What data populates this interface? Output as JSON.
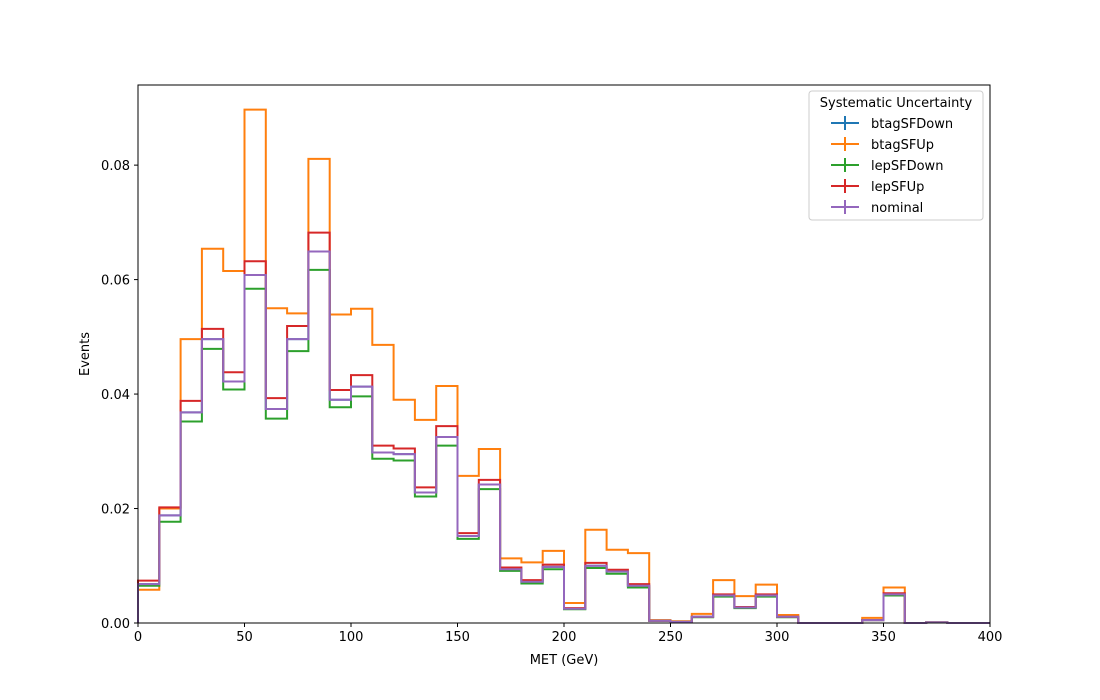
{
  "chart_data": {
    "type": "line",
    "drawstyle": "step-histogram",
    "xlabel": "MET (GeV)",
    "ylabel": "Events",
    "xlim": [
      0,
      400
    ],
    "ylim": [
      0,
      0.094
    ],
    "xticks": [
      0,
      50,
      100,
      150,
      200,
      250,
      300,
      350,
      400
    ],
    "xtick_labels": [
      "0",
      "50",
      "100",
      "150",
      "200",
      "250",
      "300",
      "350",
      "400"
    ],
    "yticks": [
      0.0,
      0.02,
      0.04,
      0.06,
      0.08
    ],
    "ytick_labels": [
      "0.00",
      "0.02",
      "0.04",
      "0.06",
      "0.08"
    ],
    "grid": false,
    "legend": {
      "title": "Systematic Uncertainty",
      "placement": "top-right"
    },
    "bin_edges": [
      0,
      10,
      20,
      30,
      40,
      50,
      60,
      70,
      80,
      90,
      100,
      110,
      120,
      130,
      140,
      150,
      160,
      170,
      180,
      190,
      200,
      210,
      220,
      230,
      240,
      250,
      260,
      270,
      280,
      290,
      300,
      310,
      320,
      330,
      340,
      350,
      360,
      370,
      380,
      390,
      400
    ],
    "series": [
      {
        "name": "btagSFDown",
        "color": "#1f77b4",
        "values": [
          0.0068,
          0.0188,
          0.0368,
          0.0496,
          0.0422,
          0.0608,
          0.0374,
          0.0496,
          0.0649,
          0.039,
          0.0413,
          0.0298,
          0.0295,
          0.0228,
          0.0325,
          0.0152,
          0.0242,
          0.0094,
          0.0072,
          0.0098,
          0.0025,
          0.01,
          0.009,
          0.0065,
          0.0004,
          0.0002,
          0.0011,
          0.0048,
          0.0027,
          0.0048,
          0.0011,
          0.0,
          0.0,
          0.0,
          0.0005,
          0.005,
          0.0,
          0.0001,
          0.0,
          0.0
        ]
      },
      {
        "name": "btagSFUp",
        "color": "#ff7f0e",
        "values": [
          0.0058,
          0.02,
          0.0496,
          0.0654,
          0.0615,
          0.0897,
          0.055,
          0.0541,
          0.0811,
          0.0539,
          0.0549,
          0.0486,
          0.039,
          0.0355,
          0.0414,
          0.0257,
          0.0304,
          0.0113,
          0.0106,
          0.0126,
          0.0035,
          0.0163,
          0.0128,
          0.0122,
          0.0005,
          0.0003,
          0.0016,
          0.0075,
          0.0047,
          0.0067,
          0.0014,
          0.0,
          0.0,
          0.0,
          0.0009,
          0.0062,
          0.0,
          0.0001,
          0.0,
          0.0
        ]
      },
      {
        "name": "lepSFDown",
        "color": "#2ca02c",
        "values": [
          0.0065,
          0.0177,
          0.0352,
          0.0479,
          0.0408,
          0.0584,
          0.0357,
          0.0475,
          0.0617,
          0.0377,
          0.0396,
          0.0287,
          0.0284,
          0.0221,
          0.031,
          0.0147,
          0.0234,
          0.0091,
          0.0069,
          0.0094,
          0.0024,
          0.0096,
          0.0086,
          0.0062,
          0.0004,
          0.0002,
          0.001,
          0.0046,
          0.0026,
          0.0046,
          0.001,
          0.0,
          0.0,
          0.0,
          0.0005,
          0.0048,
          0.0,
          0.0001,
          0.0,
          0.0
        ]
      },
      {
        "name": "lepSFUp",
        "color": "#d62728",
        "values": [
          0.0074,
          0.0202,
          0.0388,
          0.0514,
          0.0438,
          0.0632,
          0.0393,
          0.0519,
          0.0682,
          0.0407,
          0.0433,
          0.031,
          0.0305,
          0.0237,
          0.0344,
          0.0157,
          0.025,
          0.0097,
          0.0075,
          0.0102,
          0.0026,
          0.0105,
          0.0093,
          0.0068,
          0.0004,
          0.0002,
          0.0011,
          0.005,
          0.0028,
          0.005,
          0.0011,
          0.0,
          0.0,
          0.0,
          0.0005,
          0.0052,
          0.0,
          0.0001,
          0.0,
          0.0
        ]
      },
      {
        "name": "nominal",
        "color": "#9467bd",
        "values": [
          0.0068,
          0.0188,
          0.0368,
          0.0496,
          0.0422,
          0.0608,
          0.0374,
          0.0496,
          0.0649,
          0.039,
          0.0413,
          0.0298,
          0.0295,
          0.0228,
          0.0325,
          0.0152,
          0.0242,
          0.0094,
          0.0072,
          0.0098,
          0.0025,
          0.01,
          0.009,
          0.0065,
          0.0004,
          0.0002,
          0.0011,
          0.0048,
          0.0027,
          0.0048,
          0.0011,
          0.0,
          0.0,
          0.0,
          0.0005,
          0.005,
          0.0,
          0.0001,
          0.0,
          0.0
        ]
      }
    ]
  }
}
